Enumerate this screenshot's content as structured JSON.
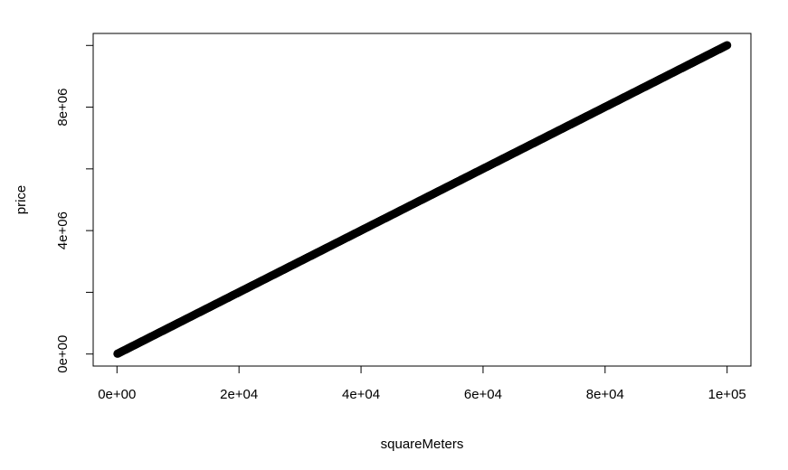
{
  "chart_data": {
    "type": "scatter",
    "xlabel": "squareMeters",
    "ylabel": "price",
    "xlim": [
      -3900,
      103900
    ],
    "ylim": [
      -390000,
      10389000
    ],
    "x_ticks": [
      0,
      20000,
      40000,
      60000,
      80000,
      100000
    ],
    "x_tick_labels": [
      "0e+00",
      "2e+04",
      "4e+04",
      "6e+04",
      "8e+04",
      "1e+05"
    ],
    "y_ticks": [
      0,
      2000000,
      4000000,
      6000000,
      8000000,
      10000000
    ],
    "y_tick_labels": [
      "0e+00",
      "",
      "4e+06",
      "",
      "8e+06",
      ""
    ],
    "series": [
      {
        "x_range": [
          89,
          99999
        ],
        "y_range": [
          10313,
          10006771
        ],
        "relationship": "y = 100 * x (approximately)",
        "point_count_approx": 10000,
        "color": "#000000"
      }
    ],
    "grid": false,
    "legend": "none",
    "box": true
  }
}
